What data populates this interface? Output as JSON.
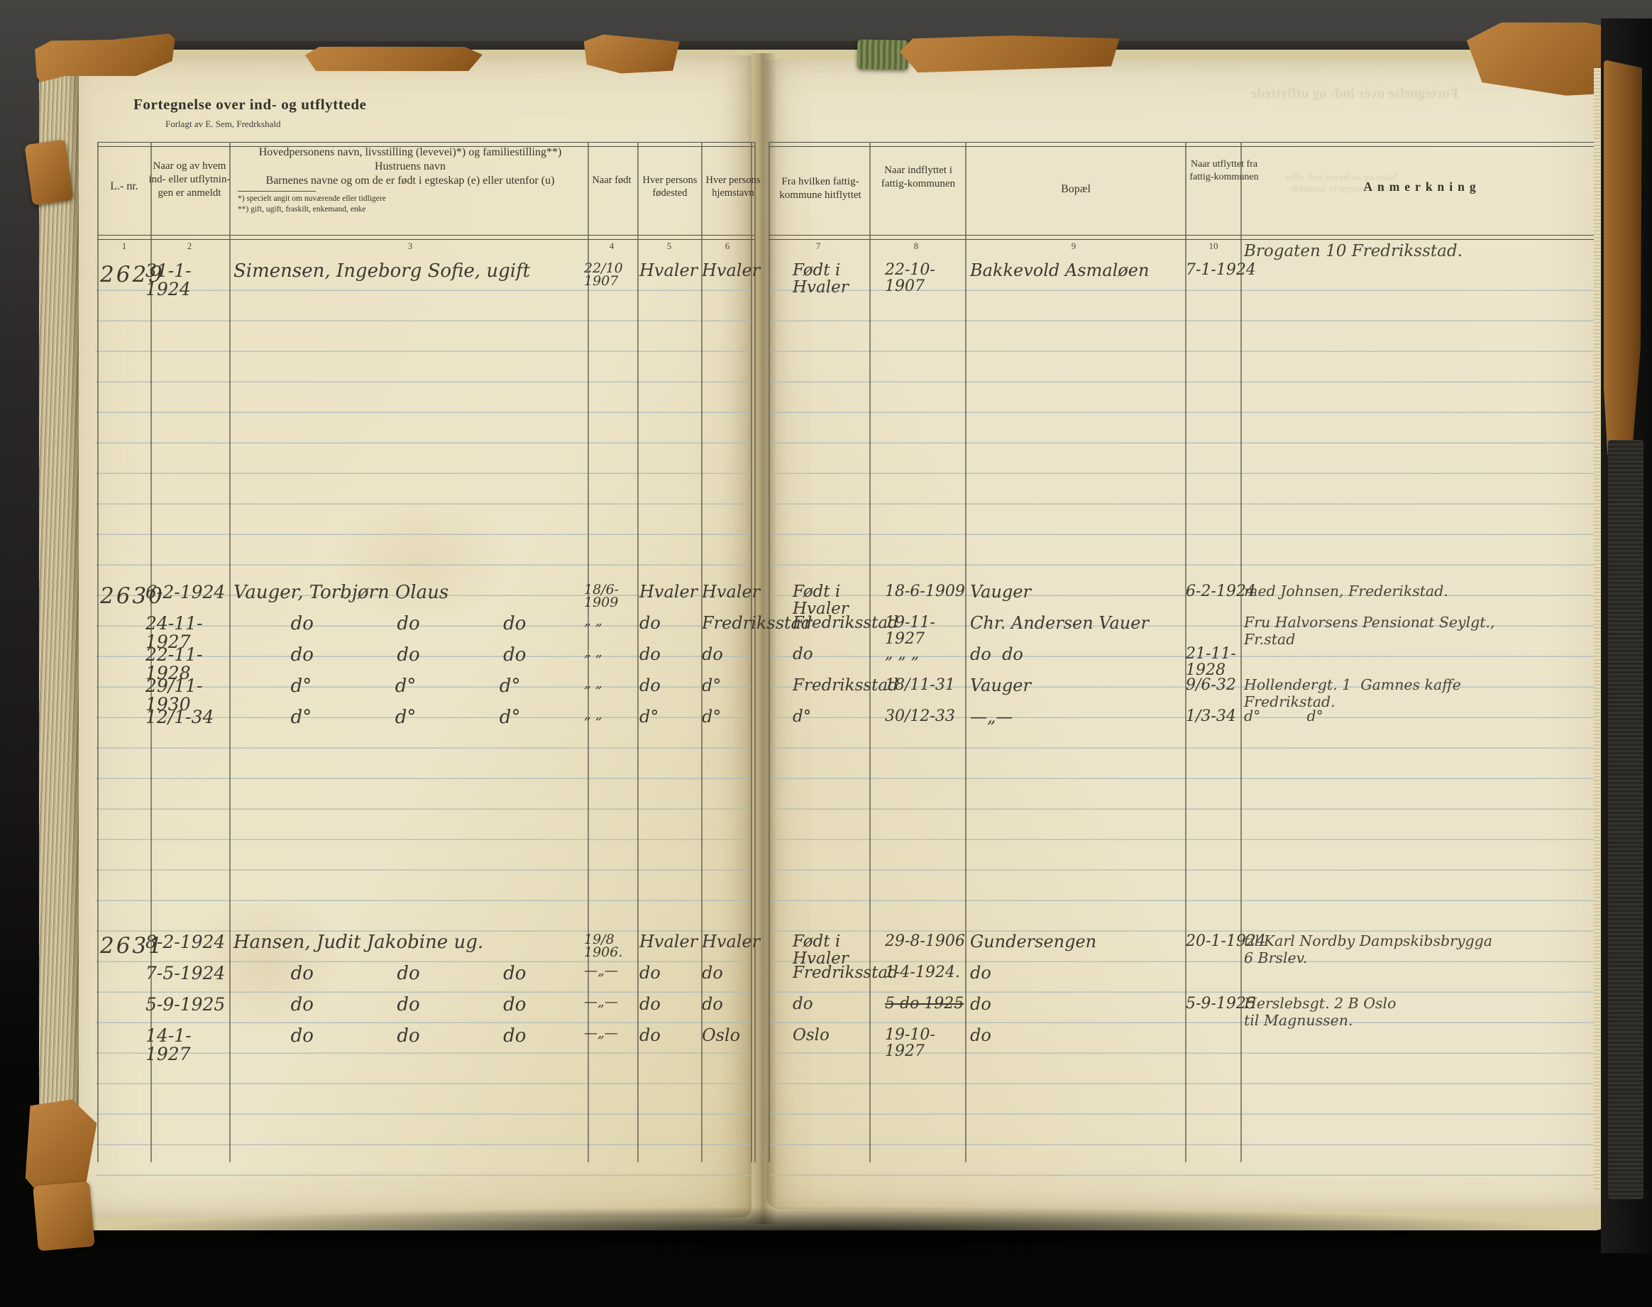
{
  "page": {
    "title": "Fortegnelse over ind- og utflyttede",
    "subtitle": "Forlagt av E. Sem, Fredrkshald"
  },
  "palette": {
    "paper": "#ebe2c4",
    "ink": "#3e392f",
    "rule_blue": "#a9bab9",
    "binding_tan": "#b97c3f",
    "cover_dark": "#2b2a27"
  },
  "table": {
    "columns": [
      {
        "num": "1",
        "label": "L.- nr."
      },
      {
        "num": "2",
        "label": "Naar og av hvem ind- eller utflytnin­gen er anmeldt"
      },
      {
        "num": "3",
        "label": "Hovedpersonens navn, livsstilling (levevei)*) og familiestilling**)"
      },
      {
        "num": "4",
        "label": "Naar født"
      },
      {
        "num": "5",
        "label": "Hver persons fødested"
      },
      {
        "num": "6",
        "label": "Hver persons hjemstavn"
      },
      {
        "num": "7",
        "label": "Fra hvilken fattig-kommune hitflyttet"
      },
      {
        "num": "8",
        "label": "Naar indflyttet i fattig-kommunen"
      },
      {
        "num": "9",
        "label": "Bopæl"
      },
      {
        "num": "10",
        "label": "Naar utflyttet fra fattig-kommunen"
      },
      {
        "num": "",
        "label": "Anmerkning"
      }
    ],
    "col3_detail": {
      "line2": "Hustruens navn",
      "line3": "Barnenes navne og om de er født i egteskap (e) eller utenfor (u)",
      "foot1": "*) specielt angit om nuværende eller tidligere",
      "foot2": "**) gift, ugift, fraskilt, enkemand, enke"
    }
  },
  "entries": [
    {
      "lnr": "2629",
      "lines": [
        {
          "anmeldt": "31-1-1924",
          "navn": "Simensen, Ingeborg Sofie, ugift",
          "fodt": "22/10 1907",
          "fodested": "Hvaler",
          "hjemstavn": "Hvaler",
          "fra": "Født i Hvaler",
          "ind": "22-10-1907",
          "bopael": "Bakkevold Asmaløen",
          "utflyttet": "7-1-1924",
          "anm": "Brogaten 10 Fredriksstad."
        }
      ]
    },
    {
      "lnr": "2630",
      "lines": [
        {
          "anmeldt": "6-2-1924",
          "navn": "Vauger, Torbjørn Olaus",
          "fodt": "18/6-1909",
          "fodested": "Hvaler",
          "hjemstavn": "Hvaler",
          "fra": "Født i Hvaler",
          "ind": "18-6-1909",
          "bopael": "Vauger",
          "utflyttet": "6-2-1924",
          "anm": "med Johnsen, Frederikstad."
        },
        {
          "anmeldt": "24-11-1927",
          "navn": "do do do",
          "fodt": "„ „",
          "fodested": "do",
          "hjemstavn": "Fredriksstad",
          "fra": "Fredriksstad",
          "ind": "19-11-1927",
          "bopael": "Chr. Andersen Vauer",
          "anm": "Fru Halvorsens Pensionat Seylgt.,\nFr.stad"
        },
        {
          "anmeldt": "22-11-1928",
          "navn": "do do do",
          "fodt": "„ „",
          "fodested": "do",
          "hjemstavn": "do",
          "fra": "do",
          "ind": "„ „ „",
          "bopael": "do  do",
          "utflyttet": "21-11-1928"
        },
        {
          "anmeldt": "29/11-1930",
          "navn": "d° d° d°",
          "fodt": "„ „",
          "fodested": "do",
          "hjemstavn": "d°",
          "fra": "Fredriksstad",
          "ind": "18/11-31",
          "bopael": "Vauger",
          "utflyttet": "9/6-32",
          "anm": "Hollendergt. 1  Gamnes kaffe\nFredrikstad."
        },
        {
          "anmeldt": "12/1-34",
          "navn": "d° d° d°",
          "fodt": "„ „",
          "fodested": "d°",
          "hjemstavn": "d°",
          "fra": "d°",
          "ind": "30/12-33",
          "bopael": "—„—",
          "utflyttet": "1/3-34",
          "anm": "d°          d°"
        }
      ]
    },
    {
      "lnr": "2631",
      "lines": [
        {
          "anmeldt": "8-2-1924",
          "navn": "Hansen, Judit Jakobine ug.",
          "fodt": "19/8 1906.",
          "fodested": "Hvaler",
          "hjemstavn": "Hvaler",
          "fra": "Født i Hvaler",
          "ind": "29-8-1906",
          "bopael": "Gundersengen",
          "utflyttet": "20-1-1924",
          "anm": "til Karl Nordby Dampskibsbrygga\n6 Brslev."
        },
        {
          "anmeldt": "7-5-1924",
          "navn": "do do do",
          "fodt": "—„—",
          "fodested": "do",
          "hjemstavn": "do",
          "fra": "Fredriksstad",
          "ind": "1-4-1924.",
          "bopael": "do"
        },
        {
          "anmeldt": "5-9-1925",
          "navn": "do do do",
          "fodt": "—„—",
          "fodested": "do",
          "hjemstavn": "do",
          "fra": "do",
          "ind": "5 do 1925",
          "ind_strike": true,
          "bopael": "do",
          "utflyttet": "5-9-1925",
          "anm": "Herslebsgt. 2 B Oslo\ntil Magnussen."
        },
        {
          "anmeldt": "14-1-1927",
          "navn": "do do do",
          "fodt": "—„—",
          "fodested": "do",
          "hjemstavn": "Oslo",
          "fra": "Oslo",
          "ind": "19-10-1927",
          "bopael": "do"
        }
      ]
    }
  ]
}
